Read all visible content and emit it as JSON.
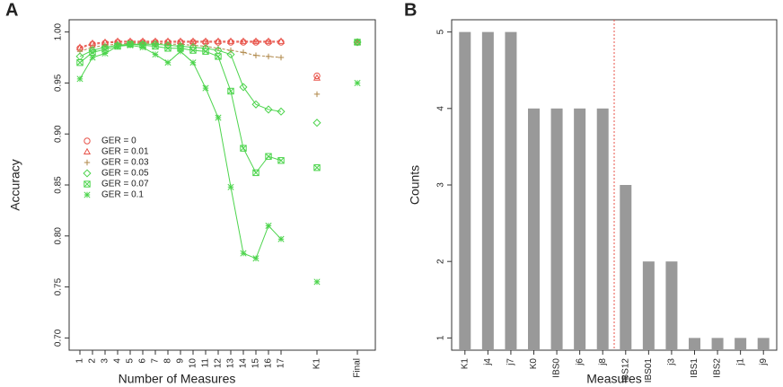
{
  "chart_data": [
    {
      "type": "line",
      "panel": "A",
      "xlabel": "Number of Measures",
      "ylabel": "Accuracy",
      "categories": [
        "1",
        "2",
        "3",
        "4",
        "5",
        "6",
        "7",
        "8",
        "9",
        "10",
        "11",
        "12",
        "13",
        "14",
        "15",
        "16",
        "17",
        "K1",
        "Final"
      ],
      "ylim": [
        0.688,
        1.012
      ],
      "yticks": [
        {
          "value": 0.7,
          "label": "0.70"
        },
        0.75,
        {
          "value": 0.8,
          "label": "0.80"
        },
        0.85,
        {
          "value": 0.9,
          "label": "0.90"
        },
        0.95,
        {
          "value": 1.0,
          "label": "1.00"
        }
      ],
      "series": [
        {
          "name": "GER = 0",
          "color": "#e8534a",
          "marker": "circle",
          "linestyle": "dashed",
          "values": [
            0.984,
            0.988,
            0.989,
            0.99,
            0.99,
            0.99,
            0.99,
            0.99,
            0.99,
            0.99,
            0.99,
            0.99,
            0.99,
            0.99,
            0.99,
            0.99,
            0.99,
            0.957,
            0.99
          ]
        },
        {
          "name": "GER = 0.01",
          "color": "#e8534a",
          "marker": "triangle",
          "linestyle": "dashed",
          "values": [
            0.985,
            0.989,
            0.99,
            0.991,
            0.991,
            0.991,
            0.991,
            0.991,
            0.991,
            0.991,
            0.991,
            0.991,
            0.991,
            0.991,
            0.991,
            0.991,
            0.991,
            0.955,
            0.99
          ]
        },
        {
          "name": "GER = 0.03",
          "color": "#b0884a",
          "marker": "plus",
          "linestyle": "dashed",
          "values": [
            0.981,
            0.985,
            0.987,
            0.988,
            0.989,
            0.989,
            0.989,
            0.988,
            0.988,
            0.987,
            0.986,
            0.984,
            0.982,
            0.98,
            0.977,
            0.976,
            0.975,
            0.939,
            0.99
          ]
        },
        {
          "name": "GER = 0.05",
          "color": "#4cd44c",
          "marker": "diamond",
          "linestyle": "solid",
          "values": [
            0.976,
            0.982,
            0.985,
            0.987,
            0.988,
            0.988,
            0.988,
            0.987,
            0.986,
            0.985,
            0.984,
            0.982,
            0.978,
            0.946,
            0.929,
            0.924,
            0.922,
            0.911,
            0.99
          ]
        },
        {
          "name": "GER = 0.07",
          "color": "#4cd44c",
          "marker": "squarecross",
          "linestyle": "solid",
          "values": [
            0.97,
            0.98,
            0.983,
            0.986,
            0.988,
            0.987,
            0.986,
            0.984,
            0.984,
            0.982,
            0.981,
            0.976,
            0.942,
            0.886,
            0.862,
            0.878,
            0.874,
            0.867,
            0.99
          ]
        },
        {
          "name": "GER = 0.1",
          "color": "#4cd44c",
          "marker": "asterisk",
          "linestyle": "solid",
          "values": [
            0.954,
            0.975,
            0.979,
            0.986,
            0.987,
            0.985,
            0.978,
            0.97,
            0.981,
            0.97,
            0.945,
            0.916,
            0.848,
            0.783,
            0.778,
            0.81,
            0.797,
            0.755,
            0.95
          ]
        }
      ]
    },
    {
      "type": "bar",
      "panel": "B",
      "xlabel": "Measures",
      "ylabel": "Counts",
      "color": "#999999",
      "categories": [
        "K1",
        "j4",
        "j7",
        "K0",
        "IBS0",
        "j6",
        "j8",
        "IBS12",
        "IBS01",
        "j3",
        "IBS1",
        "IBS2",
        "j1",
        "j9"
      ],
      "values": [
        5,
        5,
        5,
        4,
        4,
        4,
        4,
        3,
        2,
        2,
        1,
        1,
        1,
        1
      ],
      "ylim": [
        0.84,
        5.16
      ],
      "yticks": [
        1,
        2,
        3,
        4,
        5
      ]
    }
  ]
}
